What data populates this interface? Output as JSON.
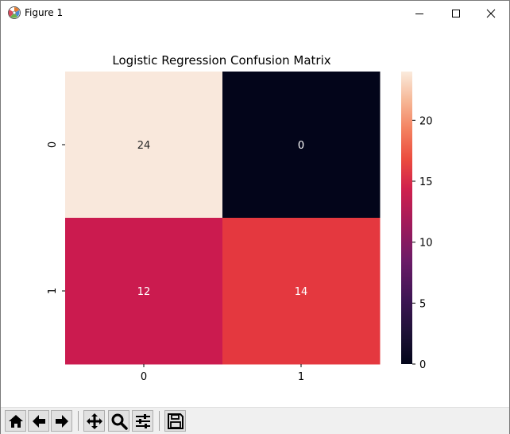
{
  "window": {
    "title": "Figure 1",
    "icons": {
      "app": "matplotlib-icon",
      "minimize": "minimize-icon",
      "maximize": "maximize-icon",
      "close": "close-icon"
    }
  },
  "toolbar": {
    "buttons": [
      {
        "name": "home",
        "icon": "home-icon"
      },
      {
        "name": "back",
        "icon": "arrow-left-icon"
      },
      {
        "name": "forward",
        "icon": "arrow-right-icon"
      },
      {
        "name": "pan",
        "icon": "move-icon"
      },
      {
        "name": "zoom",
        "icon": "zoom-icon"
      },
      {
        "name": "subplots",
        "icon": "sliders-icon"
      },
      {
        "name": "save",
        "icon": "save-icon"
      }
    ]
  },
  "chart_data": {
    "type": "heatmap",
    "title": "Logistic Regression Confusion Matrix",
    "xlabel": "",
    "ylabel": "",
    "x_tick_labels": [
      "0",
      "1"
    ],
    "y_tick_labels": [
      "0",
      "1"
    ],
    "values": [
      [
        24,
        0
      ],
      [
        12,
        14
      ]
    ],
    "annotations": [
      [
        "24",
        "0"
      ],
      [
        "12",
        "14"
      ]
    ],
    "colormap": "rocket",
    "colorbar": {
      "range": [
        0,
        24
      ],
      "ticks": [
        0,
        5,
        10,
        15,
        20
      ],
      "tick_labels": [
        "0",
        "5",
        "10",
        "15",
        "20"
      ],
      "position": "right"
    },
    "cell_colors": [
      [
        "#f9e8dc",
        "#03051a"
      ],
      [
        "#cb1b4f",
        "#e4383f"
      ]
    ],
    "annotation_colors": [
      [
        "#262626",
        "#ffffff"
      ],
      [
        "#ffffff",
        "#ffffff"
      ]
    ],
    "grid": false
  }
}
